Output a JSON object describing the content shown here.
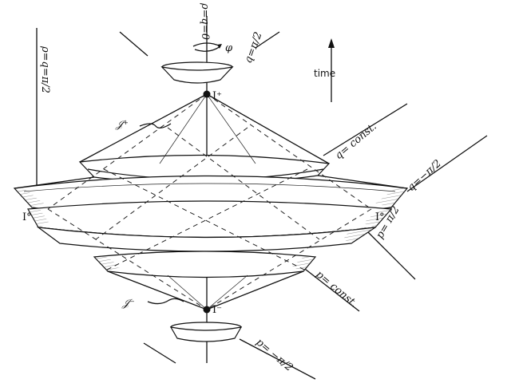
{
  "labels": {
    "axis_top": "ρ=q=0",
    "axis_left": "ρ=q=π/2",
    "q_pi2": "q=π/2",
    "q_minus_pi2": "q=−π/2",
    "q_const": "q= const.",
    "p_pi2": "p= π/2",
    "p_const": "p= const.",
    "p_minus_pi2": "p= −π/2",
    "phi": "φ",
    "i_plus": "I⁺",
    "i_minus": "I⁻",
    "i0_left": "I°",
    "i0_right": "I°",
    "scri_plus": "𝒥⁺",
    "scri_minus": "𝒥⁻",
    "time": "time"
  }
}
